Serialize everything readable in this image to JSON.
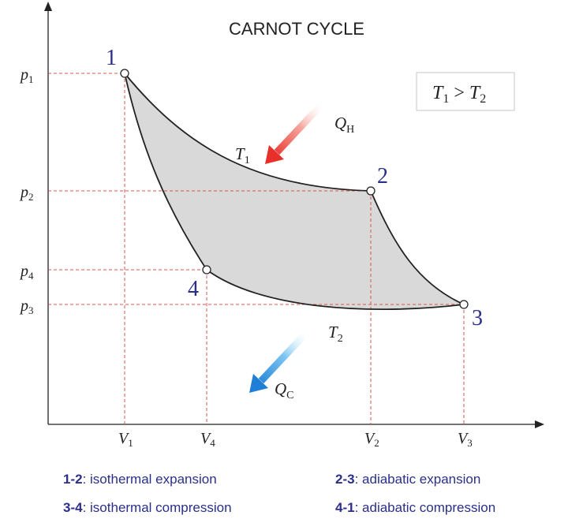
{
  "title": "CARNOT CYCLE",
  "condition": {
    "a": "T",
    "a_sub": "1",
    "op": ">",
    "b": "T",
    "b_sub": "2"
  },
  "points": [
    {
      "id": "1"
    },
    {
      "id": "2"
    },
    {
      "id": "3"
    },
    {
      "id": "4"
    }
  ],
  "axis": {
    "p_ticks": [
      {
        "base": "p",
        "sub": "1"
      },
      {
        "base": "p",
        "sub": "2"
      },
      {
        "base": "p",
        "sub": "4"
      },
      {
        "base": "p",
        "sub": "3"
      }
    ],
    "v_ticks": [
      {
        "base": "V",
        "sub": "1"
      },
      {
        "base": "V",
        "sub": "4"
      },
      {
        "base": "V",
        "sub": "2"
      },
      {
        "base": "V",
        "sub": "3"
      }
    ]
  },
  "isotherm_labels": {
    "hot": {
      "base": "T",
      "sub": "1"
    },
    "cold": {
      "base": "T",
      "sub": "2"
    }
  },
  "heat_labels": {
    "in": {
      "base": "Q",
      "sub": "H"
    },
    "out": {
      "base": "Q",
      "sub": "C"
    }
  },
  "colors": {
    "cycle_fill": "#d9d9d9",
    "curve": "#222222",
    "guide": "#d9534f",
    "label": "#2b2f8a",
    "hot_arrow": "#e8302a",
    "cold_arrow": "#1f7fd6"
  },
  "legend": [
    {
      "key": "1-2",
      "desc": "isothermal expansion"
    },
    {
      "key": "2-3",
      "desc": "adiabatic expansion"
    },
    {
      "key": "3-4",
      "desc": "isothermal compression"
    },
    {
      "key": "4-1",
      "desc": "adiabatic compression"
    }
  ]
}
